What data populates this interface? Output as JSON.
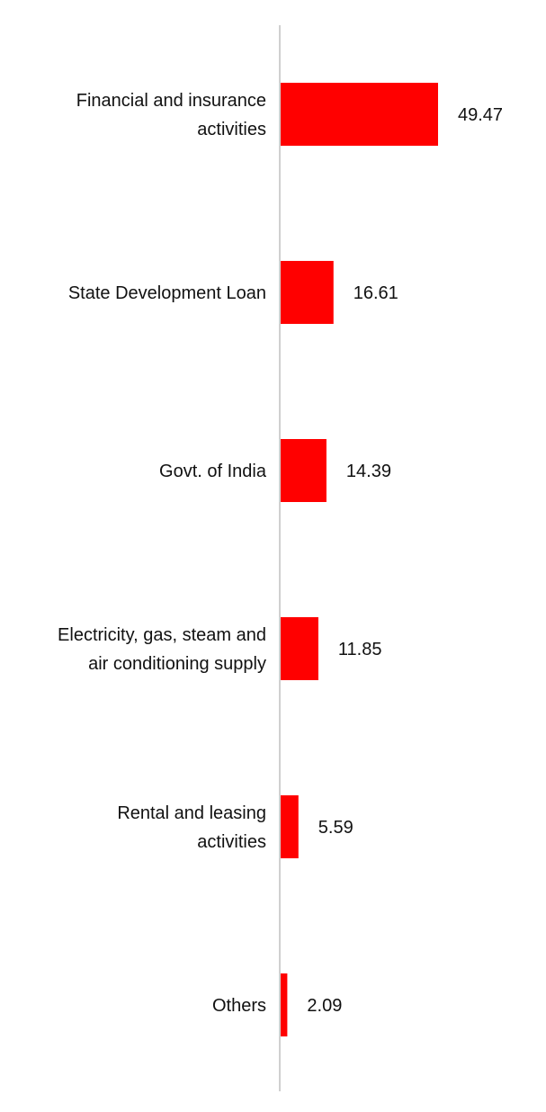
{
  "chart_data": {
    "type": "bar",
    "orientation": "horizontal",
    "categories": [
      [
        "Financial and insurance",
        "activities"
      ],
      [
        "State Development Loan"
      ],
      [
        "Govt. of India"
      ],
      [
        "Electricity, gas, steam and",
        "air conditioning supply"
      ],
      [
        "Rental and leasing",
        "activities"
      ],
      [
        "Others"
      ]
    ],
    "values": [
      49.47,
      16.61,
      14.39,
      11.85,
      5.59,
      2.09
    ],
    "value_labels": [
      "49.47",
      "16.61",
      "14.39",
      "11.85",
      "5.59",
      "2.09"
    ],
    "bar_color": "#ff0000",
    "axis_color": "#d0d0d0",
    "grid": false,
    "legend": "none"
  }
}
